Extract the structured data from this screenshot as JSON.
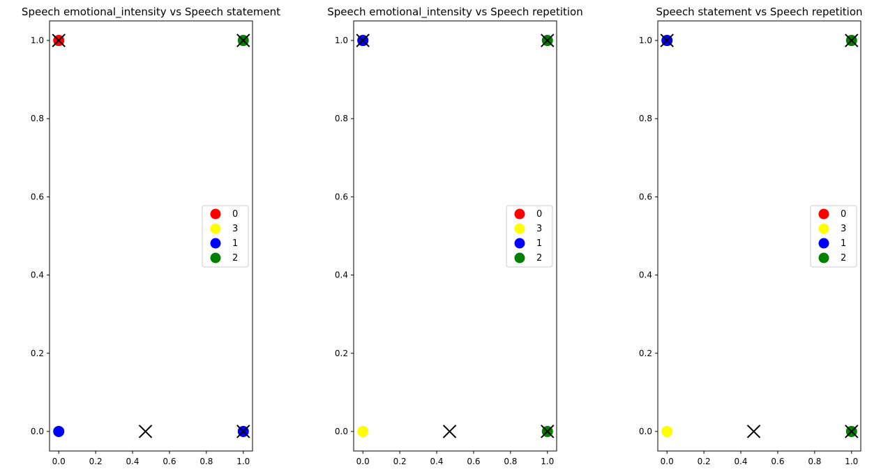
{
  "chart_data": [
    {
      "type": "scatter",
      "title": "Speech emotional_intensity vs Speech statement",
      "xlabel": "",
      "ylabel": "",
      "xlim": [
        -0.05,
        1.05
      ],
      "ylim": [
        -0.05,
        1.05
      ],
      "xticks": [
        "0.0",
        "0.2",
        "0.4",
        "0.6",
        "0.8",
        "1.0"
      ],
      "yticks": [
        "0.0",
        "0.2",
        "0.4",
        "0.6",
        "0.8",
        "1.0"
      ],
      "grid": false,
      "legend_position": "center right",
      "series": [
        {
          "name": "0",
          "color": "#ff0000",
          "marker": "circle",
          "points": [
            [
              0,
              1
            ]
          ]
        },
        {
          "name": "3",
          "color": "#ffff00",
          "marker": "circle",
          "points": [
            [
              0,
              0
            ]
          ]
        },
        {
          "name": "1",
          "color": "#0000ff",
          "marker": "circle",
          "points": [
            [
              0,
              0
            ],
            [
              1,
              0
            ]
          ]
        },
        {
          "name": "2",
          "color": "#008000",
          "marker": "circle",
          "points": [
            [
              1,
              1
            ]
          ]
        }
      ],
      "centroids": {
        "color": "#000000",
        "marker": "x",
        "points": [
          [
            0,
            1
          ],
          [
            0.47,
            0
          ],
          [
            1,
            0
          ],
          [
            1,
            1
          ]
        ]
      }
    },
    {
      "type": "scatter",
      "title": "Speech emotional_intensity vs Speech repetition",
      "xlabel": "",
      "ylabel": "",
      "xlim": [
        -0.05,
        1.05
      ],
      "ylim": [
        -0.05,
        1.05
      ],
      "xticks": [
        "0.0",
        "0.2",
        "0.4",
        "0.6",
        "0.8",
        "1.0"
      ],
      "yticks": [
        "0.0",
        "0.2",
        "0.4",
        "0.6",
        "0.8",
        "1.0"
      ],
      "grid": false,
      "legend_position": "center right",
      "series": [
        {
          "name": "0",
          "color": "#ff0000",
          "marker": "circle",
          "points": [
            [
              0,
              1
            ]
          ]
        },
        {
          "name": "3",
          "color": "#ffff00",
          "marker": "circle",
          "points": [
            [
              0,
              0
            ]
          ]
        },
        {
          "name": "1",
          "color": "#0000ff",
          "marker": "circle",
          "points": [
            [
              0,
              1
            ]
          ]
        },
        {
          "name": "2",
          "color": "#008000",
          "marker": "circle",
          "points": [
            [
              1,
              0
            ],
            [
              1,
              1
            ]
          ]
        }
      ],
      "centroids": {
        "color": "#000000",
        "marker": "x",
        "points": [
          [
            0,
            1
          ],
          [
            0.47,
            0
          ],
          [
            1,
            1
          ],
          [
            1,
            0
          ]
        ]
      }
    },
    {
      "type": "scatter",
      "title": "Speech statement vs Speech repetition",
      "xlabel": "",
      "ylabel": "",
      "xlim": [
        -0.05,
        1.05
      ],
      "ylim": [
        -0.05,
        1.05
      ],
      "xticks": [
        "0.0",
        "0.2",
        "0.4",
        "0.6",
        "0.8",
        "1.0"
      ],
      "yticks": [
        "0.0",
        "0.2",
        "0.4",
        "0.6",
        "0.8",
        "1.0"
      ],
      "grid": false,
      "legend_position": "center right",
      "series": [
        {
          "name": "0",
          "color": "#ff0000",
          "marker": "circle",
          "points": [
            [
              0,
              1
            ]
          ]
        },
        {
          "name": "3",
          "color": "#ffff00",
          "marker": "circle",
          "points": [
            [
              0,
              0
            ]
          ]
        },
        {
          "name": "1",
          "color": "#0000ff",
          "marker": "circle",
          "points": [
            [
              0,
              1
            ]
          ]
        },
        {
          "name": "2",
          "color": "#008000",
          "marker": "circle",
          "points": [
            [
              1,
              0
            ],
            [
              1,
              1
            ]
          ]
        }
      ],
      "centroids": {
        "color": "#000000",
        "marker": "x",
        "points": [
          [
            0,
            1
          ],
          [
            0.47,
            0
          ],
          [
            1,
            1
          ],
          [
            1,
            0
          ]
        ]
      }
    }
  ]
}
